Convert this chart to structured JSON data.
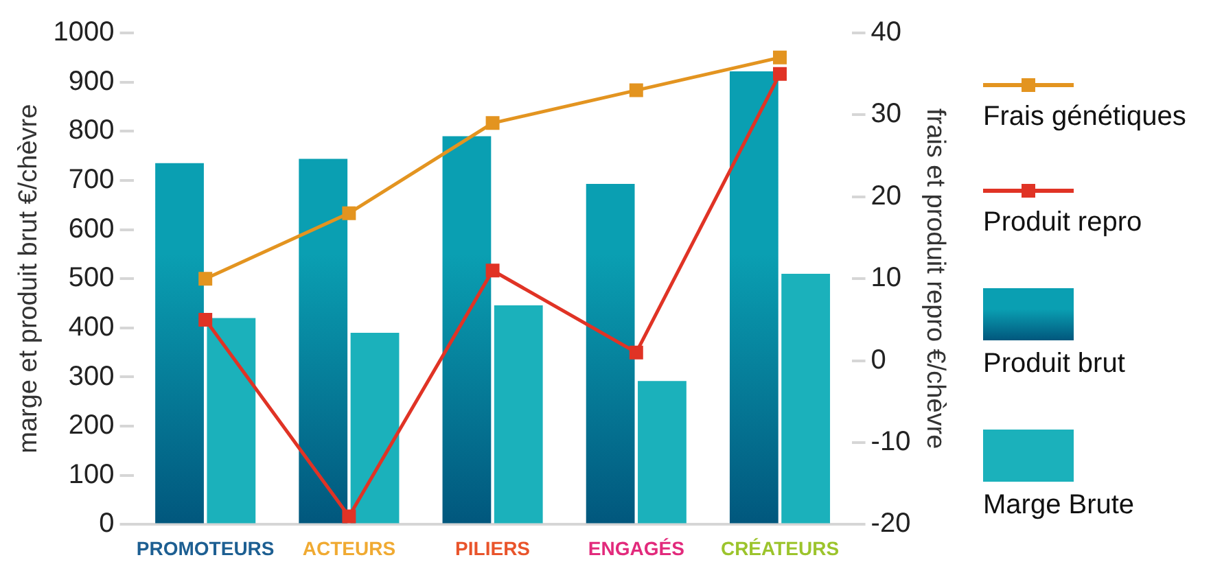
{
  "chart_data": {
    "type": "bar",
    "categories": [
      "PROMOTEURS",
      "ACTEURS",
      "PILIERS",
      "ENGAGÉS",
      "CRÉATEURS"
    ],
    "ylabel": "marge et produit brut €/chèvre",
    "y2label": "frais et produit repro €/chèvre",
    "series": [
      {
        "name": "Frais génétiques",
        "type": "line",
        "axis": "y2",
        "color": "#e39420",
        "values": [
          10,
          18,
          29,
          33,
          37
        ]
      },
      {
        "name": "Produit repro",
        "type": "line",
        "axis": "y2",
        "color": "#e03325",
        "values": [
          5,
          -19,
          11,
          1,
          35
        ]
      },
      {
        "name": "Produit brut",
        "color": "#0a9fb2",
        "values": [
          735,
          744,
          790,
          693,
          922
        ]
      },
      {
        "name": "Marge Brute",
        "color": "#1bb1bb",
        "values": [
          420,
          390,
          446,
          292,
          510
        ]
      }
    ],
    "ylim": [
      0,
      1000
    ],
    "yticks": [
      0,
      100,
      200,
      300,
      400,
      500,
      600,
      700,
      800,
      900,
      1000
    ],
    "y2lim": [
      -20,
      40
    ],
    "y2ticks": [
      -20,
      -10,
      0,
      10,
      20,
      30,
      40
    ],
    "marker": "square",
    "line_style": "solid",
    "grid": false,
    "legend": "right"
  }
}
